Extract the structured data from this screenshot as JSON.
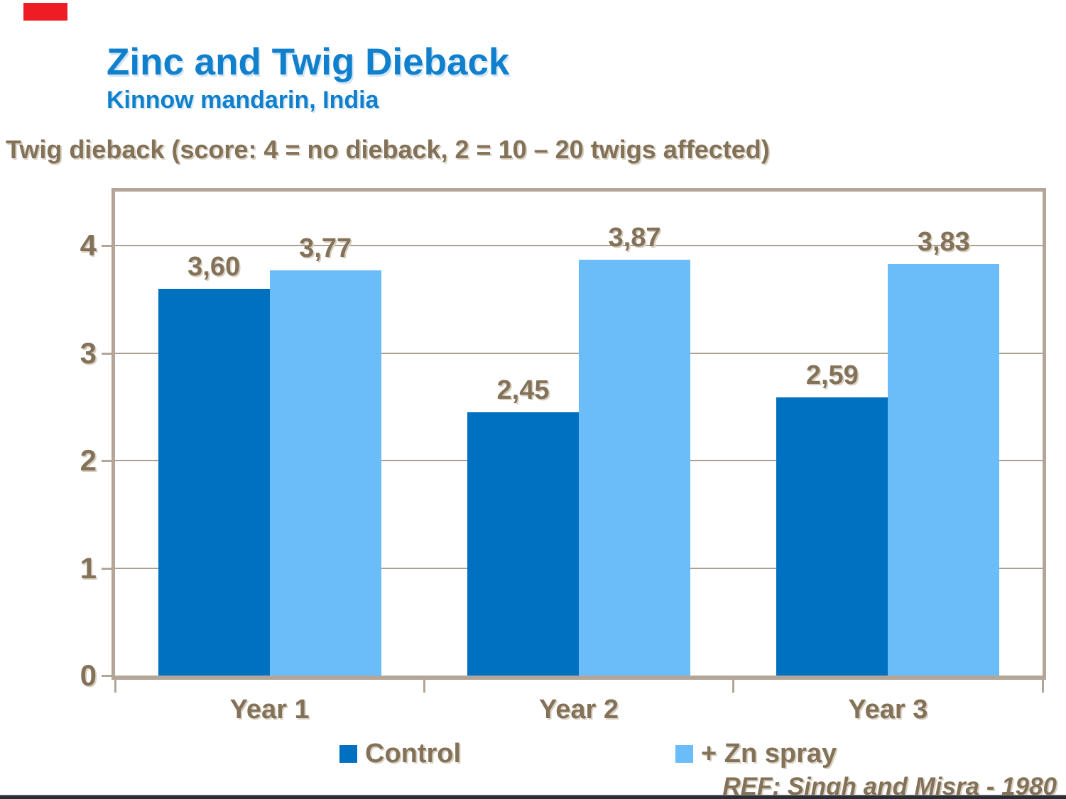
{
  "theme": {
    "background": "#ffffff",
    "title_color": "#1080cd",
    "text_color": "#837258",
    "text_shadow_color": "#d8d0c3",
    "frame_color": "#b3a698",
    "grid_color": "#aca093",
    "marker_color": "#ee1c25",
    "bottom_bar_color": "#2b2d35"
  },
  "header": {
    "title": "Zinc and Twig Dieback",
    "subtitle": "Kinnow mandarin, India"
  },
  "chart_data": {
    "type": "bar",
    "title": "Zinc and Twig Dieback",
    "subtitle": "Kinnow mandarin, India",
    "axis_title": "Twig dieback (score: 4 = no dieback, 2 = 10 – 20 twigs affected)",
    "categories": [
      "Year 1",
      "Year 2",
      "Year 3"
    ],
    "series": [
      {
        "name": "Control",
        "color": "#0070c0",
        "values": [
          3.6,
          2.45,
          2.59
        ],
        "value_labels": [
          "3,60",
          "2,45",
          "2,59"
        ]
      },
      {
        "name": "+ Zn spray",
        "color": "#6abdf8",
        "values": [
          3.77,
          3.87,
          3.83
        ],
        "value_labels": [
          "3,77",
          "3,87",
          "3,83"
        ]
      }
    ],
    "ylim": [
      0,
      4.5
    ],
    "yticks": [
      0,
      1,
      2,
      3,
      4
    ],
    "grid": true,
    "legend_position": "bottom"
  },
  "footer": {
    "reference": "REF: Singh and Misra - 1980"
  }
}
